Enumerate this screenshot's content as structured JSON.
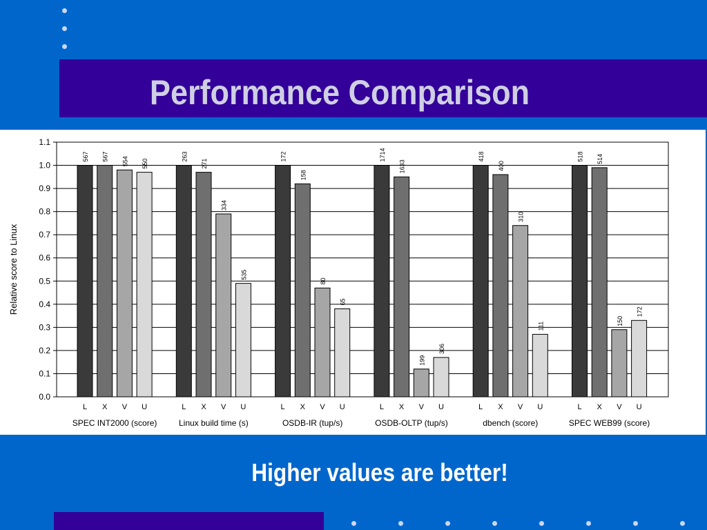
{
  "slide": {
    "title": "Performance Comparison",
    "note": "Higher values are better!",
    "colors": {
      "background": "#0066cc",
      "title_bar": "#330099",
      "title_text": "#cfcfe3",
      "bar_L": "#3a3a3a",
      "bar_X": "#6f6f6f",
      "bar_V": "#a6a6a6",
      "bar_U": "#d9d9d9"
    }
  },
  "chart_data": {
    "type": "bar",
    "ylabel": "Relative score to Linux",
    "ylim": [
      0.0,
      1.1
    ],
    "yticks": [
      "0.0",
      "0.1",
      "0.2",
      "0.3",
      "0.4",
      "0.5",
      "0.6",
      "0.7",
      "0.8",
      "0.9",
      "1.0",
      "1.1"
    ],
    "grid": true,
    "bar_letters": [
      "L",
      "X",
      "V",
      "U"
    ],
    "groups": [
      {
        "label": "SPEC INT2000 (score)",
        "values": [
          1.0,
          1.0,
          0.98,
          0.97
        ],
        "labels": [
          "567",
          "567",
          "554",
          "550"
        ]
      },
      {
        "label": "Linux build time (s)",
        "values": [
          1.0,
          0.97,
          0.79,
          0.49
        ],
        "labels": [
          "263",
          "271",
          "334",
          "535"
        ]
      },
      {
        "label": "OSDB-IR (tup/s)",
        "values": [
          1.0,
          0.92,
          0.47,
          0.38
        ],
        "labels": [
          "172",
          "158",
          "80",
          "65"
        ]
      },
      {
        "label": "OSDB-OLTP (tup/s)",
        "values": [
          1.0,
          0.95,
          0.12,
          0.17
        ],
        "labels": [
          "1714",
          "1633",
          "199",
          "306"
        ]
      },
      {
        "label": "dbench (score)",
        "values": [
          1.0,
          0.96,
          0.74,
          0.27
        ],
        "labels": [
          "418",
          "400",
          "310",
          "111"
        ]
      },
      {
        "label": "SPEC WEB99 (score)",
        "values": [
          1.0,
          0.99,
          0.29,
          0.33
        ],
        "labels": [
          "518",
          "514",
          "150",
          "172"
        ]
      }
    ]
  }
}
